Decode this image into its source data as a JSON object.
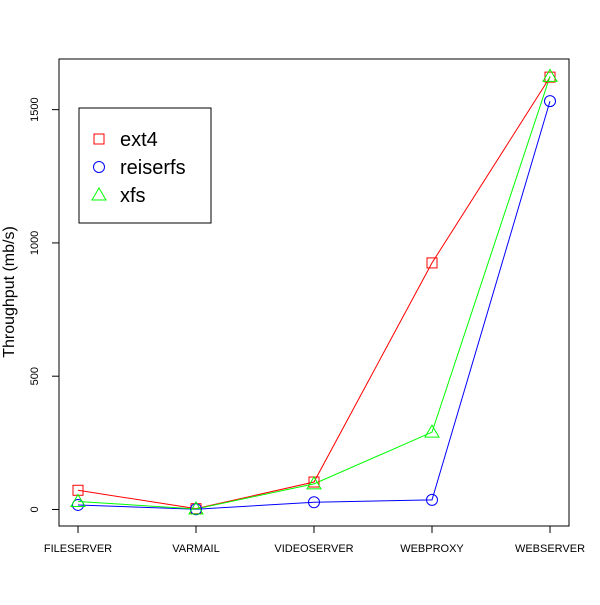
{
  "chart_data": {
    "type": "line",
    "title": "",
    "xlabel": "",
    "ylabel": "Throughput (mb/s)",
    "categories": [
      "FILESERVER",
      "VARMAIL",
      "VIDEOSERVER",
      "WEBPROXY",
      "WEBSERVER"
    ],
    "ylim": [
      -62,
      1690
    ],
    "yticks": [
      0,
      500,
      1000,
      1500
    ],
    "ytick_labels": [
      "0",
      "500",
      "1000",
      "1500"
    ],
    "grid": false,
    "legend_position": "top-left",
    "series": [
      {
        "name": "ext4",
        "color": "#ff0000",
        "marker": "square",
        "values": [
          72,
          3,
          103,
          925,
          1622
        ]
      },
      {
        "name": "reiserfs",
        "color": "#0000ff",
        "marker": "circle",
        "values": [
          17,
          1,
          27,
          36,
          1532
        ]
      },
      {
        "name": "xfs",
        "color": "#00ff00",
        "marker": "triangle",
        "values": [
          30,
          2,
          96,
          290,
          1625
        ]
      }
    ]
  }
}
